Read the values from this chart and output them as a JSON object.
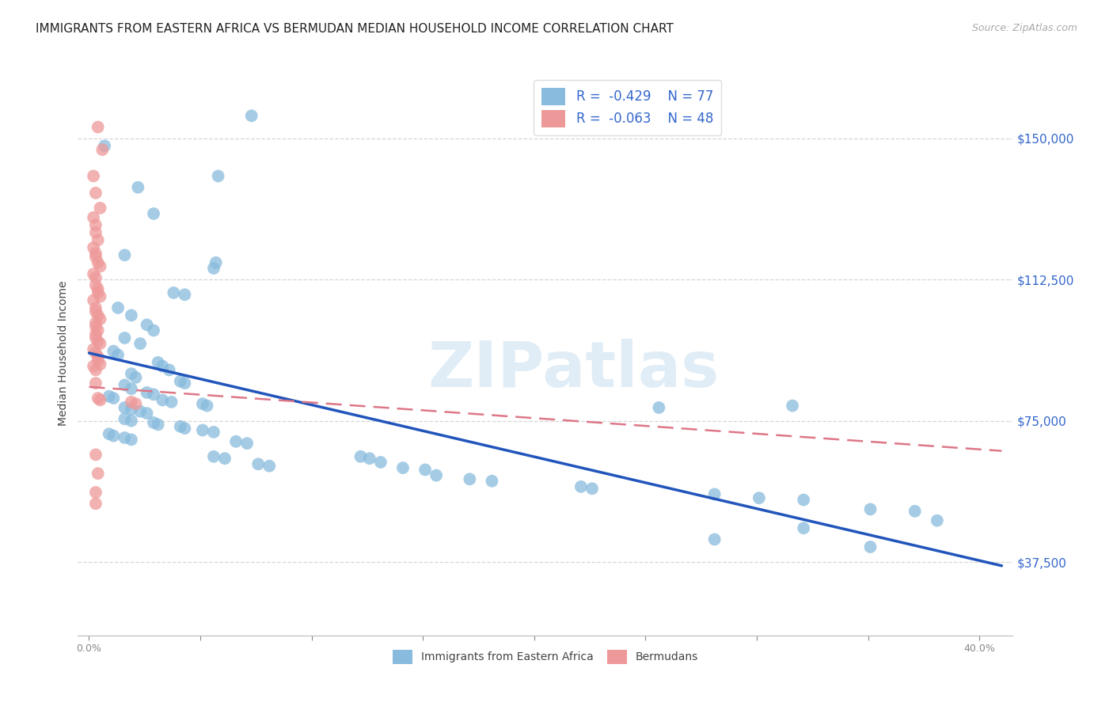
{
  "title": "IMMIGRANTS FROM EASTERN AFRICA VS BERMUDAN MEDIAN HOUSEHOLD INCOME CORRELATION CHART",
  "source": "Source: ZipAtlas.com",
  "ylabel": "Median Household Income",
  "y_ticks": [
    37500,
    75000,
    112500,
    150000
  ],
  "y_tick_labels": [
    "$37,500",
    "$75,000",
    "$112,500",
    "$150,000"
  ],
  "xlim": [
    -0.005,
    0.415
  ],
  "ylim": [
    18000,
    168000
  ],
  "legend_r_color": "#3366cc",
  "legend_n_color": "#3366cc",
  "blue_color": "#88bbdd",
  "pink_color": "#ee9999",
  "blue_line_color": "#2255bb",
  "pink_line_color": "#dd7788",
  "title_fontsize": 11,
  "source_fontsize": 9,
  "axis_label_fontsize": 10,
  "tick_fontsize": 9,
  "tick_color": "#3366cc",
  "watermark_text": "ZIPatlas",
  "watermark_color": "#c8dff0",
  "grid_color": "#cccccc",
  "blue_scatter": [
    [
      0.007,
      148000
    ],
    [
      0.022,
      137000
    ],
    [
      0.073,
      156000
    ],
    [
      0.058,
      140000
    ],
    [
      0.029,
      130000
    ],
    [
      0.016,
      119000
    ],
    [
      0.038,
      109000
    ],
    [
      0.043,
      108500
    ],
    [
      0.057,
      117000
    ],
    [
      0.056,
      115500
    ],
    [
      0.013,
      105000
    ],
    [
      0.019,
      103000
    ],
    [
      0.026,
      100500
    ],
    [
      0.029,
      99000
    ],
    [
      0.016,
      97000
    ],
    [
      0.023,
      95500
    ],
    [
      0.011,
      93500
    ],
    [
      0.013,
      92500
    ],
    [
      0.031,
      90500
    ],
    [
      0.033,
      89500
    ],
    [
      0.036,
      88500
    ],
    [
      0.019,
      87500
    ],
    [
      0.021,
      86500
    ],
    [
      0.041,
      85500
    ],
    [
      0.043,
      85000
    ],
    [
      0.016,
      84500
    ],
    [
      0.019,
      83500
    ],
    [
      0.026,
      82500
    ],
    [
      0.029,
      82000
    ],
    [
      0.009,
      81500
    ],
    [
      0.011,
      81000
    ],
    [
      0.033,
      80500
    ],
    [
      0.037,
      80000
    ],
    [
      0.051,
      79500
    ],
    [
      0.053,
      79000
    ],
    [
      0.016,
      78500
    ],
    [
      0.019,
      78000
    ],
    [
      0.023,
      77500
    ],
    [
      0.026,
      77000
    ],
    [
      0.016,
      75500
    ],
    [
      0.019,
      75000
    ],
    [
      0.029,
      74500
    ],
    [
      0.031,
      74000
    ],
    [
      0.041,
      73500
    ],
    [
      0.043,
      73000
    ],
    [
      0.051,
      72500
    ],
    [
      0.056,
      72000
    ],
    [
      0.009,
      71500
    ],
    [
      0.011,
      71000
    ],
    [
      0.016,
      70500
    ],
    [
      0.019,
      70000
    ],
    [
      0.066,
      69500
    ],
    [
      0.071,
      69000
    ],
    [
      0.056,
      65500
    ],
    [
      0.061,
      65000
    ],
    [
      0.076,
      63500
    ],
    [
      0.081,
      63000
    ],
    [
      0.122,
      65500
    ],
    [
      0.126,
      65000
    ],
    [
      0.131,
      64000
    ],
    [
      0.141,
      62500
    ],
    [
      0.151,
      62000
    ],
    [
      0.156,
      60500
    ],
    [
      0.171,
      59500
    ],
    [
      0.181,
      59000
    ],
    [
      0.221,
      57500
    ],
    [
      0.226,
      57000
    ],
    [
      0.281,
      55500
    ],
    [
      0.301,
      54500
    ],
    [
      0.321,
      54000
    ],
    [
      0.351,
      51500
    ],
    [
      0.371,
      51000
    ],
    [
      0.381,
      48500
    ],
    [
      0.321,
      46500
    ],
    [
      0.281,
      43500
    ],
    [
      0.351,
      41500
    ],
    [
      0.256,
      78500
    ],
    [
      0.316,
      79000
    ]
  ],
  "pink_scatter": [
    [
      0.004,
      153000
    ],
    [
      0.006,
      147000
    ],
    [
      0.002,
      140000
    ],
    [
      0.003,
      135500
    ],
    [
      0.005,
      131500
    ],
    [
      0.002,
      129000
    ],
    [
      0.003,
      127000
    ],
    [
      0.003,
      125000
    ],
    [
      0.004,
      123000
    ],
    [
      0.002,
      121000
    ],
    [
      0.003,
      119500
    ],
    [
      0.003,
      118500
    ],
    [
      0.004,
      117000
    ],
    [
      0.005,
      116000
    ],
    [
      0.002,
      114000
    ],
    [
      0.003,
      113000
    ],
    [
      0.003,
      111000
    ],
    [
      0.004,
      110000
    ],
    [
      0.004,
      109000
    ],
    [
      0.005,
      108000
    ],
    [
      0.002,
      107000
    ],
    [
      0.003,
      105000
    ],
    [
      0.003,
      104000
    ],
    [
      0.004,
      103000
    ],
    [
      0.005,
      102000
    ],
    [
      0.003,
      101000
    ],
    [
      0.003,
      100000
    ],
    [
      0.004,
      99000
    ],
    [
      0.003,
      98000
    ],
    [
      0.003,
      97000
    ],
    [
      0.004,
      96000
    ],
    [
      0.005,
      95500
    ],
    [
      0.002,
      94000
    ],
    [
      0.003,
      93000
    ],
    [
      0.004,
      92000
    ],
    [
      0.004,
      91000
    ],
    [
      0.005,
      90000
    ],
    [
      0.002,
      89500
    ],
    [
      0.003,
      88500
    ],
    [
      0.003,
      85000
    ],
    [
      0.004,
      81000
    ],
    [
      0.005,
      80500
    ],
    [
      0.019,
      80000
    ],
    [
      0.021,
      79500
    ],
    [
      0.003,
      66000
    ],
    [
      0.004,
      61000
    ],
    [
      0.003,
      56000
    ],
    [
      0.003,
      53000
    ]
  ],
  "blue_line": {
    "x0": 0.0,
    "y0": 93000,
    "x1": 0.41,
    "y1": 36500
  },
  "pink_line": {
    "x0": 0.0,
    "y0": 84000,
    "x1": 0.41,
    "y1": 67000
  }
}
